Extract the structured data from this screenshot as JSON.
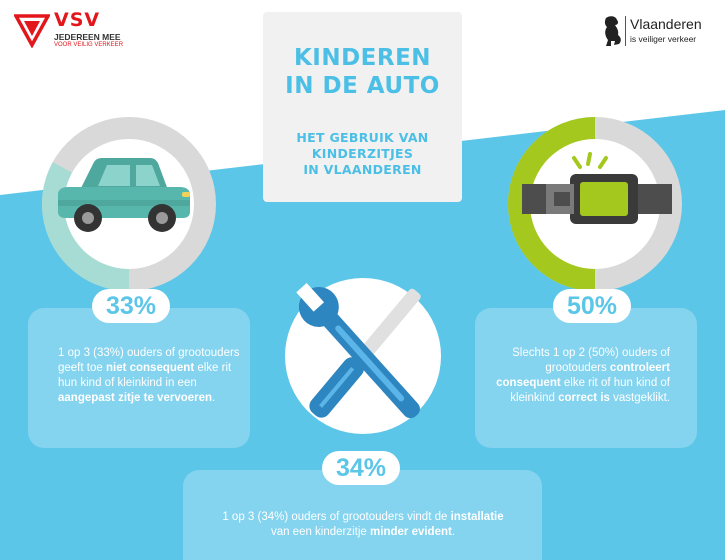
{
  "vsv_logo": {
    "name": "VSV",
    "line1": "JEDEREEN MEE",
    "line2": "VOOR VEILIG VERKEER"
  },
  "vlaanderen_logo": {
    "name": "Vlaanderen",
    "tagline": "is veiliger verkeer"
  },
  "title": {
    "line1": "KINDEREN",
    "line2": "IN DE AUTO",
    "subtitle_line1": "HET GEBRUIK VAN",
    "subtitle_line2": "KINDERZITJES",
    "subtitle_line3": "IN VLAANDEREN"
  },
  "stats": [
    {
      "percent_label": "33%",
      "value": 33,
      "icon": "car-icon",
      "parts": [
        {
          "text": "1 op 3 (33%) ouders of grootouders geeft toe ",
          "bold": false
        },
        {
          "text": "niet consequent",
          "bold": true
        },
        {
          "text": " elke rit hun kind of kleinkind in een ",
          "bold": false
        },
        {
          "text": "aangepast zitje te vervoeren",
          "bold": true
        },
        {
          "text": ".",
          "bold": false
        }
      ]
    },
    {
      "percent_label": "50%",
      "value": 50,
      "icon": "seatbelt-buckle-icon",
      "parts": [
        {
          "text": "Slechts 1 op 2 (50%) ouders of grootouders ",
          "bold": false
        },
        {
          "text": "controleert consequent",
          "bold": true
        },
        {
          "text": " elke rit of hun kind of kleinkind ",
          "bold": false
        },
        {
          "text": "correct is",
          "bold": true
        },
        {
          "text": " vastgeklikt.",
          "bold": false
        }
      ]
    },
    {
      "percent_label": "34%",
      "value": 34,
      "icon": "wrench-screwdriver-icon",
      "parts": [
        {
          "text": "1 op 3 (34%) ouders of grootouders vindt de ",
          "bold": false
        },
        {
          "text": "installatie",
          "bold": true
        },
        {
          "text": " van een kinderzitje ",
          "bold": false
        },
        {
          "text": "minder evident",
          "bold": true
        },
        {
          "text": ".",
          "bold": false
        }
      ]
    }
  ],
  "colors": {
    "sky_blue": "#5bc6e8",
    "card_blue": "#84d3ef",
    "ring_grey": "#d9d9d9",
    "teal_fill": "#a7dcd4",
    "lime_fill": "#a4c81e",
    "car_teal": "#58b7ac",
    "vsv_red": "#e3171b"
  }
}
